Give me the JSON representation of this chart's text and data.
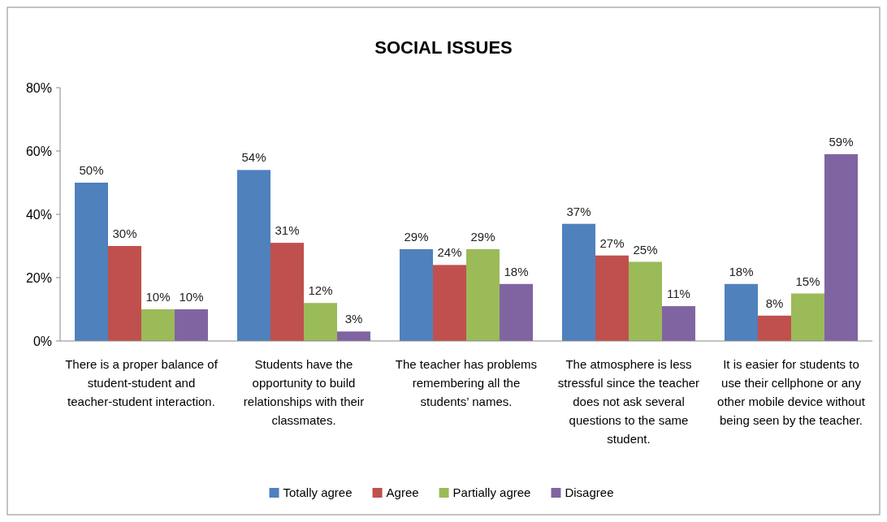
{
  "chart_data": {
    "type": "bar",
    "title": "SOCIAL ISSUES",
    "categories": [
      "There is a proper balance of student-student and teacher-student interaction.",
      "Students have the opportunity to build relationships with their classmates.",
      "The teacher has problems remembering all the students’ names.",
      "The atmosphere is less stressful since the teacher does not ask several questions to the same student.",
      "It is easier for students to use their cellphone or any other mobile device without being seen by the teacher."
    ],
    "series": [
      {
        "name": "Totally agree",
        "color": "#4f81bd",
        "values": [
          50,
          54,
          29,
          37,
          18
        ],
        "value_labels": [
          "50%",
          "54%",
          "29%",
          "37%",
          "18%"
        ]
      },
      {
        "name": "Agree",
        "color": "#c0504d",
        "values": [
          30,
          31,
          24,
          27,
          8
        ],
        "value_labels": [
          "30%",
          "31%",
          "24%",
          "27%",
          "8%"
        ]
      },
      {
        "name": "Partially agree",
        "color": "#9bbb59",
        "values": [
          10,
          12,
          29,
          25,
          15
        ],
        "value_labels": [
          "10%",
          "12%",
          "29%",
          "25%",
          "15%"
        ]
      },
      {
        "name": "Disagree",
        "color": "#8064a2",
        "values": [
          10,
          3,
          18,
          11,
          59
        ],
        "value_labels": [
          "10%",
          "3%",
          "18%",
          "11%",
          "59%"
        ]
      }
    ],
    "ylim": [
      0,
      80
    ],
    "yticks": [
      {
        "value": 0,
        "label": "0%"
      },
      {
        "value": 20,
        "label": "20%"
      },
      {
        "value": 40,
        "label": "40%"
      },
      {
        "value": 60,
        "label": "60%"
      },
      {
        "value": 80,
        "label": "80%"
      }
    ],
    "legend": "bottom"
  }
}
